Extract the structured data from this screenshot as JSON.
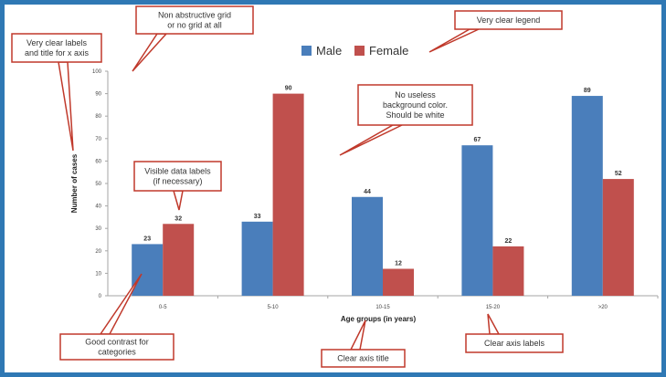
{
  "chart_data": {
    "type": "bar",
    "categories": [
      "0-5",
      "5-10",
      "10-15",
      "15-20",
      ">20"
    ],
    "series": [
      {
        "name": "Male",
        "values": [
          23,
          33,
          44,
          67,
          89
        ],
        "color": "#4a7ebb"
      },
      {
        "name": "Female",
        "values": [
          32,
          90,
          12,
          22,
          52
        ],
        "color": "#c0504d"
      }
    ],
    "title": "",
    "xlabel": "Age groups (in years)",
    "ylabel": "Number of cases",
    "ylim": [
      0,
      100
    ],
    "yticks": [
      0,
      10,
      20,
      30,
      40,
      50,
      60,
      70,
      80,
      90,
      100
    ],
    "grid": false,
    "legend_position": "top"
  },
  "annotations": [
    {
      "id": "labels",
      "lines": [
        "Very clear labels",
        "and title for x axis"
      ]
    },
    {
      "id": "grid",
      "lines": [
        "Non abstructive grid",
        "or no grid at all"
      ]
    },
    {
      "id": "legend",
      "lines": [
        "Very clear legend"
      ]
    },
    {
      "id": "background",
      "lines": [
        "No useless",
        "background color.",
        "Should be white"
      ]
    },
    {
      "id": "datalabels",
      "lines": [
        "Visible data labels",
        "(if necessary)"
      ]
    },
    {
      "id": "contrast",
      "lines": [
        "Good contrast for",
        "categories"
      ]
    },
    {
      "id": "axistitle",
      "lines": [
        "Clear axis title"
      ]
    },
    {
      "id": "axislabels",
      "lines": [
        "Clear axis labels"
      ]
    }
  ]
}
